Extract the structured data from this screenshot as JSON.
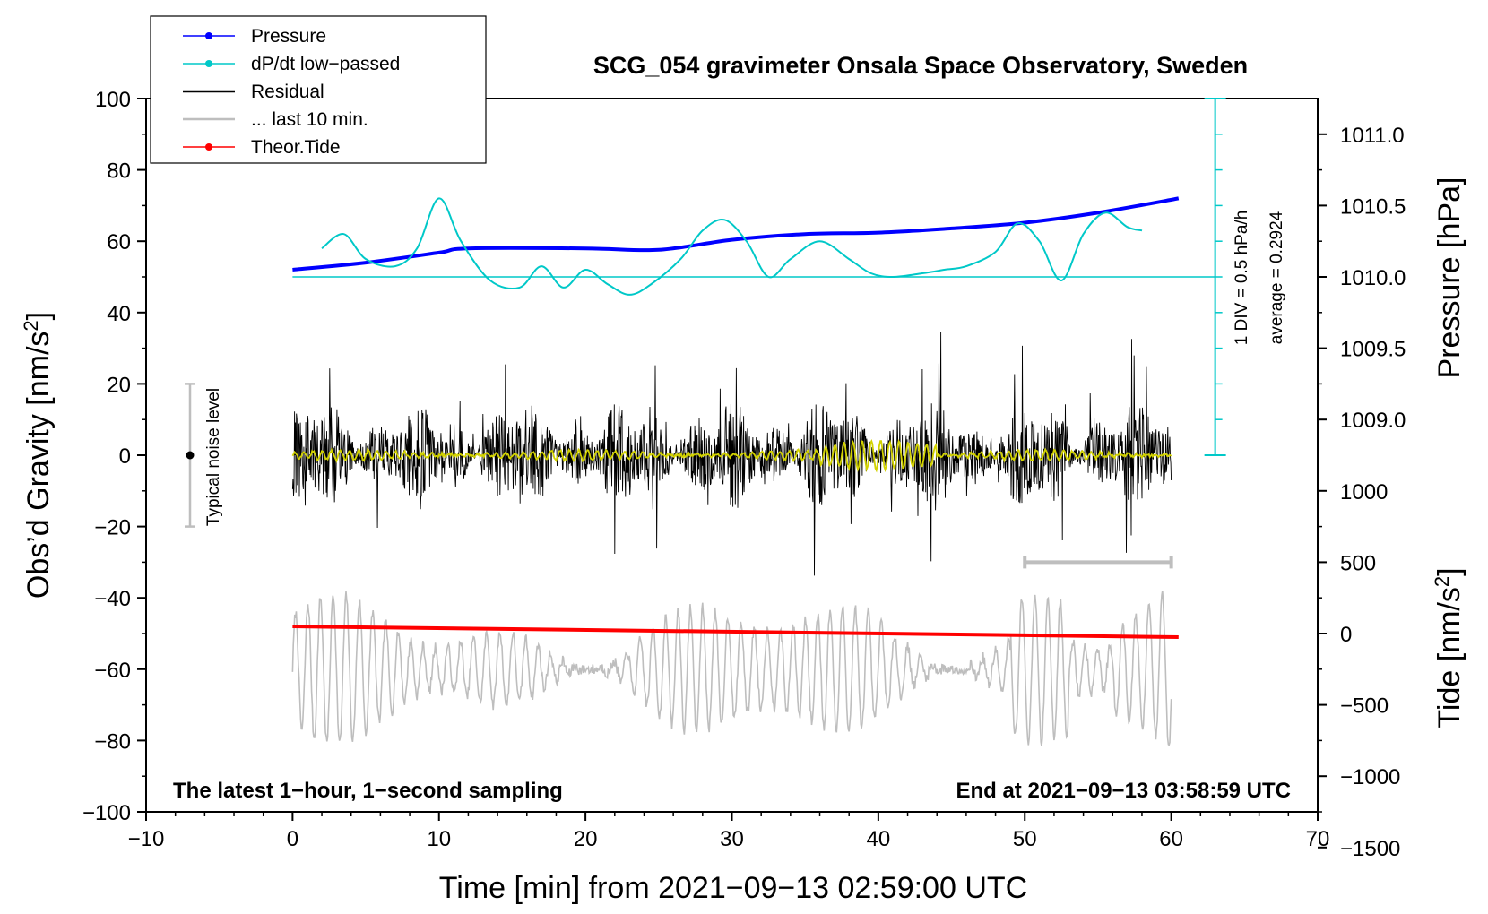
{
  "chart_data": {
    "type": "line",
    "title": "SCG_054 gravimeter Onsala Space Observatory, Sweden",
    "xlabel": "Time [min] from 2021−09−13 02:59:00 UTC",
    "ylabel_left": "Obs’d Gravity [nm/s",
    "ylabel_left_sup": "2",
    "ylabel_left_close": "]",
    "ylabel_pressure": "Pressure [hPa]",
    "ylabel_tide": "Tide [nm/s",
    "ylabel_tide_sup": "2",
    "ylabel_tide_close": "]",
    "xlim": [
      -10,
      70
    ],
    "ylim": [
      -100,
      100
    ],
    "x_ticks": [
      "−10",
      "0",
      "10",
      "20",
      "30",
      "40",
      "50",
      "60",
      "70"
    ],
    "y_ticks_left": [
      "100",
      "80",
      "60",
      "40",
      "20",
      "0",
      "−20",
      "−40",
      "−60",
      "−80",
      "−100"
    ],
    "pressure_ticks": [
      "1011.0",
      "1010.5",
      "1010.0",
      "1009.5",
      "1009.0"
    ],
    "tide_ticks": [
      "1000",
      "500",
      "0",
      "−500",
      "−1000",
      "−1500"
    ],
    "annotation_left": "The latest 1−hour, 1−second sampling",
    "annotation_right": "End at 2021−09−13 03:58:59 UTC",
    "noise_label": "Typical noise level",
    "noise_range": [
      -20,
      20
    ],
    "div_label": "1 DIV = 0.5 hPa/h",
    "average_label": "average = 0.2924",
    "legend": [
      {
        "label": "Pressure",
        "color": "#0000ff",
        "marker": true
      },
      {
        "label": "dP/dt low−passed",
        "color": "#00c8c8",
        "marker": true
      },
      {
        "label": "Residual",
        "color": "#000000",
        "marker": false
      },
      {
        "label": "... last 10 min.",
        "color": "#bebebe",
        "marker": false
      },
      {
        "label": "Theor.Tide",
        "color": "#ff0000",
        "marker": true
      }
    ],
    "series": [
      {
        "name": "Pressure",
        "units": "hPa",
        "x": [
          0,
          5,
          10,
          12,
          20,
          25,
          30,
          35,
          40,
          45,
          50,
          55,
          60.5
        ],
        "values": [
          1010.05,
          1010.1,
          1010.17,
          1010.2,
          1010.2,
          1010.19,
          1010.26,
          1010.3,
          1010.31,
          1010.34,
          1010.38,
          1010.45,
          1010.55
        ]
      },
      {
        "name": "dP/dt low−passed",
        "units": "nm/s² display",
        "x": [
          2,
          3.5,
          5,
          7,
          8.5,
          10,
          11.5,
          13.5,
          15.5,
          17,
          18.5,
          20,
          21.5,
          23,
          24.5,
          26.5,
          28,
          29.5,
          31,
          32.5,
          34,
          36,
          38,
          39.5,
          41,
          43,
          44.5,
          46,
          48,
          49.5,
          51,
          52.5,
          54,
          55.5,
          57,
          58
        ],
        "values": [
          58,
          62,
          55,
          53,
          58,
          72,
          60,
          49,
          47,
          53,
          47,
          52,
          48,
          45,
          48,
          55,
          63,
          66,
          60,
          50,
          55,
          60,
          55,
          51,
          50,
          51,
          52,
          53,
          57,
          65,
          60,
          49,
          62,
          68,
          64,
          63
        ]
      },
      {
        "name": "Residual",
        "units": "nm/s²",
        "x_range": [
          0,
          60
        ],
        "envelope_approx": 30
      },
      {
        "name": "... last 10 min.",
        "units": "nm/s² display",
        "x_range": [
          0,
          60
        ],
        "center": -60,
        "envelope_approx": 25
      },
      {
        "name": "Theor.Tide",
        "units": "nm/s²",
        "x": [
          0,
          60.5
        ],
        "values": [
          50,
          -25
        ]
      },
      {
        "name": "Residual low−passed (yellow)",
        "units": "nm/s²",
        "x_range": [
          0,
          60
        ],
        "envelope_approx": 3
      }
    ],
    "last10_bar": [
      50,
      60
    ],
    "dpdt_baseline": 50,
    "dpdt_scale_marker_x": 63,
    "colors": {
      "pressure": "#0000ff",
      "dpdt": "#00c8c8",
      "residual": "#000000",
      "last10": "#bebebe",
      "tide": "#ff0000",
      "yellow": "#d2d200",
      "noise": "#bebebe"
    }
  }
}
